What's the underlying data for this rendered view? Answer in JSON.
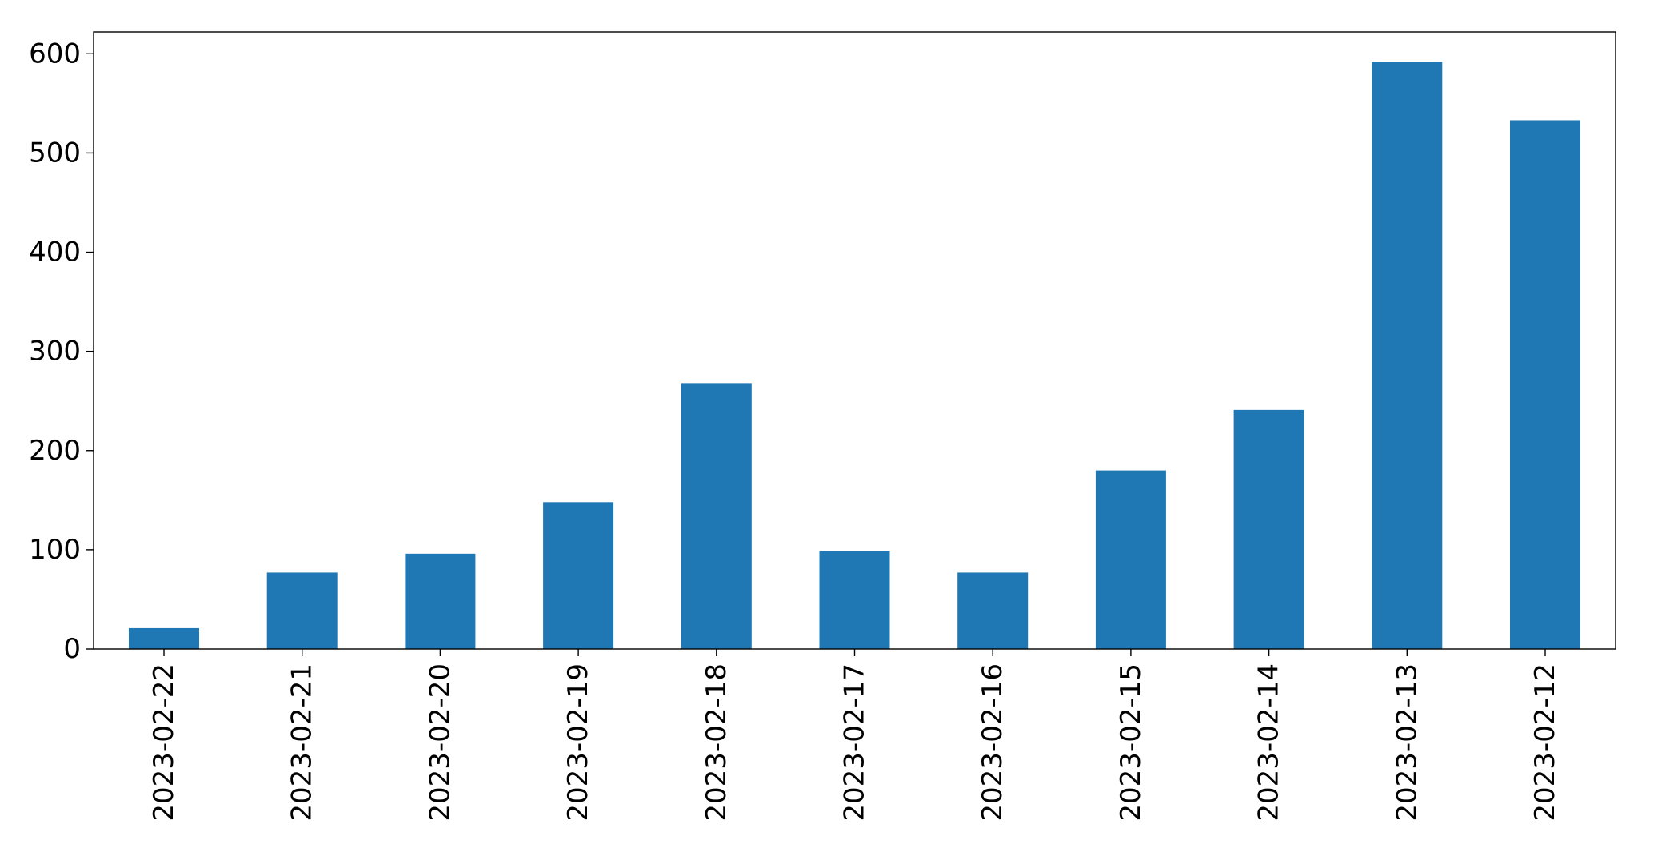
{
  "chart_data": {
    "type": "bar",
    "title": "",
    "xlabel": "",
    "ylabel": "",
    "categories": [
      "2023-02-22",
      "2023-02-21",
      "2023-02-20",
      "2023-02-19",
      "2023-02-18",
      "2023-02-17",
      "2023-02-16",
      "2023-02-15",
      "2023-02-14",
      "2023-02-13",
      "2023-02-12"
    ],
    "values": [
      21,
      77,
      96,
      148,
      268,
      99,
      77,
      180,
      241,
      592,
      533
    ],
    "ylim": [
      0,
      622
    ],
    "yticks": [
      0,
      100,
      200,
      300,
      400,
      500,
      600
    ],
    "bar_color": "#1f77b4",
    "grid": false,
    "legend": "none"
  }
}
